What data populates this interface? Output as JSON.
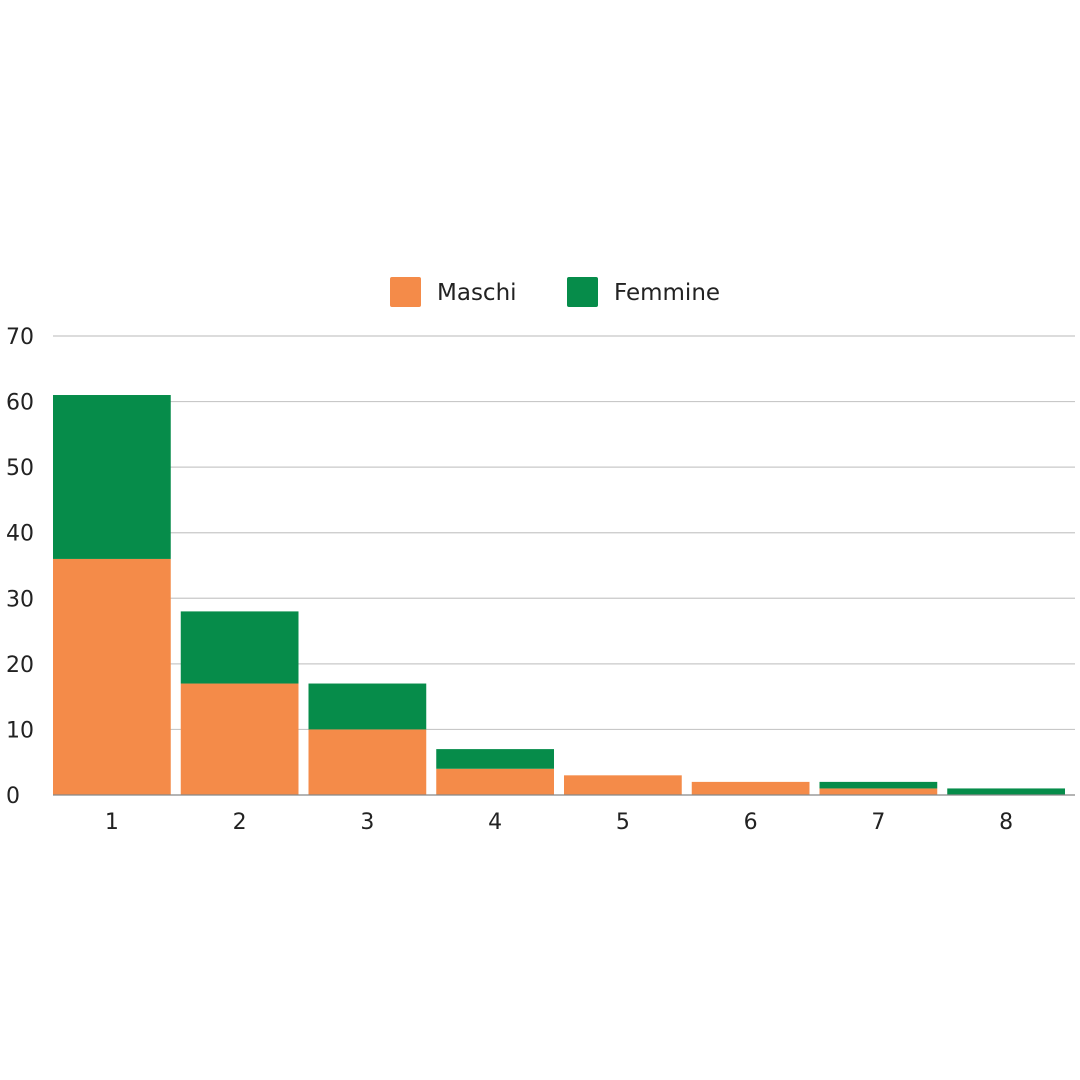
{
  "chart_data": {
    "type": "bar",
    "stacked": true,
    "categories": [
      "1",
      "2",
      "3",
      "4",
      "5",
      "6",
      "7",
      "8"
    ],
    "series": [
      {
        "name": "Maschi",
        "color": "#f48b49",
        "values": [
          36,
          17,
          10,
          4,
          3,
          2,
          1,
          0
        ]
      },
      {
        "name": "Femmine",
        "color": "#068c4a",
        "values": [
          25,
          11,
          7,
          3,
          0,
          0,
          1,
          1
        ]
      }
    ],
    "yticks": [
      0,
      10,
      20,
      30,
      40,
      50,
      60,
      70
    ],
    "ylim": [
      0,
      70
    ],
    "grid": true,
    "legend": "top-center"
  }
}
